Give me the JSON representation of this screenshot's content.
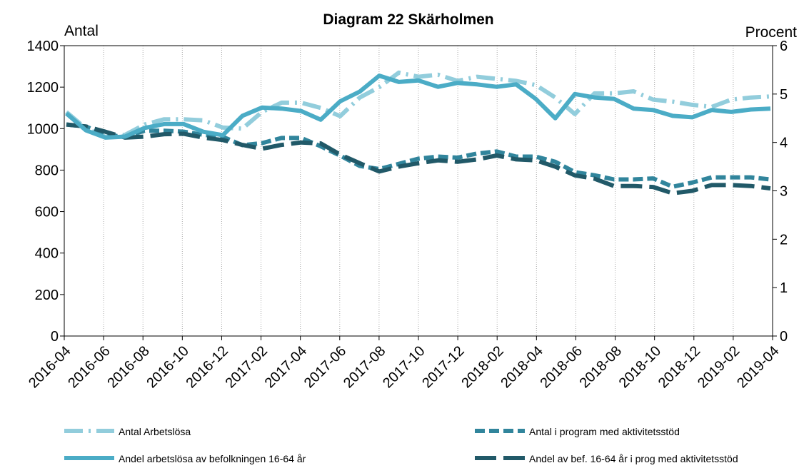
{
  "chart_data": {
    "type": "line",
    "title": "Diagram 22 Skärholmen",
    "y_label": "Antal",
    "y2_label": "Procent",
    "categories": [
      "2016-04",
      null,
      "2016-06",
      null,
      "2016-08",
      null,
      "2016-10",
      null,
      "2016-12",
      null,
      "2017-02",
      null,
      "2017-04",
      null,
      "2017-06",
      null,
      "2017-08",
      null,
      "2017-10",
      null,
      "2017-12",
      null,
      "2018-02",
      null,
      "2018-04",
      null,
      "2018-06",
      null,
      "2018-08",
      null,
      "2018-10",
      null,
      "2018-12",
      null,
      "2019-02",
      null,
      "2019-04"
    ],
    "ylim": [
      0,
      1400
    ],
    "yticks": [
      0,
      200,
      400,
      600,
      800,
      1000,
      1200,
      1400
    ],
    "y2lim": [
      0,
      6
    ],
    "y2ticks": [
      0,
      1,
      2,
      3,
      4,
      5,
      6
    ],
    "grid": true,
    "series": [
      {
        "name": "Antal Arbetslösa",
        "color": "#92cddc",
        "style": "dash-dot",
        "values": [
          1080,
          1000,
          960,
          970,
          1020,
          1045,
          1045,
          1040,
          1005,
          1000,
          1080,
          1125,
          1125,
          1100,
          1060,
          1150,
          1200,
          1270,
          1250,
          1260,
          1230,
          1250,
          1240,
          1230,
          1210,
          1150,
          1070,
          1170,
          1170,
          1180,
          1140,
          1130,
          1115,
          1105,
          1140,
          1150,
          1155
        ]
      },
      {
        "name": "Antal i program med aktivitetsstöd",
        "color": "#31859c",
        "style": "dashed",
        "values": [
          1020,
          1010,
          970,
          960,
          990,
          990,
          985,
          970,
          960,
          920,
          930,
          955,
          955,
          915,
          870,
          820,
          805,
          830,
          855,
          865,
          860,
          880,
          890,
          865,
          865,
          840,
          790,
          775,
          755,
          755,
          760,
          720,
          740,
          765,
          765,
          765,
          755
        ]
      },
      {
        "name": "Andel arbetslösa av befolkningen 16-64 år",
        "color": "#4bacc6",
        "style": "solid",
        "axis": "y2",
        "values": [
          4.6,
          4.25,
          4.1,
          4.12,
          4.3,
          4.38,
          4.38,
          4.22,
          4.15,
          4.55,
          4.72,
          4.7,
          4.65,
          4.47,
          4.85,
          5.05,
          5.38,
          5.25,
          5.28,
          5.15,
          5.23,
          5.2,
          5.15,
          5.2,
          4.9,
          4.5,
          5.0,
          4.93,
          4.9,
          4.7,
          4.67,
          4.55,
          4.52,
          4.67,
          4.63,
          4.68,
          4.7
        ]
      },
      {
        "name": "Andel av bef. 16-64 år i prog med aktivitetsstöd",
        "color": "#215968",
        "style": "long-dash",
        "axis": "y2",
        "values": [
          4.37,
          4.33,
          4.22,
          4.1,
          4.12,
          4.17,
          4.18,
          4.1,
          4.05,
          3.95,
          3.87,
          3.95,
          4.0,
          3.98,
          3.75,
          3.57,
          3.4,
          3.5,
          3.57,
          3.63,
          3.6,
          3.65,
          3.73,
          3.65,
          3.63,
          3.5,
          3.32,
          3.25,
          3.1,
          3.1,
          3.08,
          2.95,
          3.0,
          3.12,
          3.12,
          3.1,
          3.05
        ]
      }
    ]
  }
}
